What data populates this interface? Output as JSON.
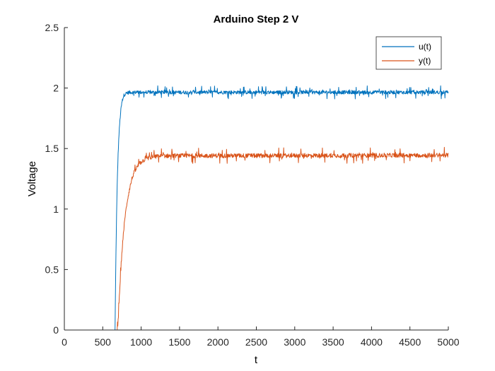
{
  "chart_data": {
    "type": "line",
    "title": "Arduino Step 2 V",
    "xlabel": "t",
    "ylabel": "Voltage",
    "xlim": [
      0,
      5000
    ],
    "ylim": [
      0,
      2.5
    ],
    "xticks": [
      0,
      500,
      1000,
      1500,
      2000,
      2500,
      3000,
      3500,
      4000,
      4500,
      5000
    ],
    "xtick_labels": [
      "0",
      "500",
      "1000",
      "1500",
      "2000",
      "2500",
      "3000",
      "3500",
      "4000",
      "4500",
      "5000"
    ],
    "yticks": [
      0,
      0.5,
      1,
      1.5,
      2,
      2.5
    ],
    "ytick_labels": [
      "0",
      "0.5",
      "1",
      "1.5",
      "2",
      "2.5"
    ],
    "grid": false,
    "legend_position": "top-right",
    "series": [
      {
        "name": "u(t)",
        "color": "#0072BD",
        "x": [
          0,
          660,
          670,
          680,
          690,
          700,
          710,
          720,
          730,
          740,
          750,
          760,
          770,
          780,
          800,
          820,
          850,
          5000
        ],
        "y": [
          0,
          0,
          0.55,
          0.95,
          1.25,
          1.45,
          1.6,
          1.7,
          1.78,
          1.84,
          1.88,
          1.91,
          1.93,
          1.945,
          1.955,
          1.96,
          1.965,
          1.965
        ],
        "noise_amplitude": 0.025
      },
      {
        "name": "y(t)",
        "color": "#D95319",
        "x": [
          0,
          690,
          700,
          720,
          740,
          760,
          780,
          800,
          820,
          850,
          880,
          900,
          950,
          1000,
          1050,
          1100,
          1200,
          1300,
          5000
        ],
        "y": [
          0,
          0,
          0.05,
          0.33,
          0.55,
          0.73,
          0.87,
          0.98,
          1.07,
          1.17,
          1.25,
          1.29,
          1.35,
          1.39,
          1.41,
          1.425,
          1.435,
          1.44,
          1.445
        ],
        "noise_amplitude": 0.03
      }
    ]
  }
}
